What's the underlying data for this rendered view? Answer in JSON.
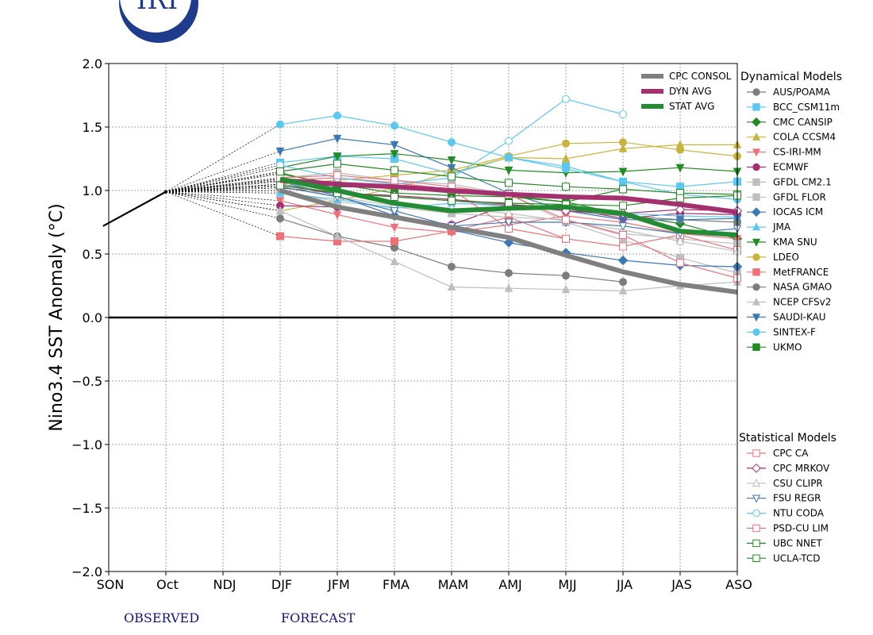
{
  "logo_text": "IRI",
  "footer": {
    "observed": "OBSERVED",
    "forecast": "FORECAST"
  },
  "chart_data": {
    "type": "line",
    "title": "",
    "ylabel": "Nino3.4 SST Anomaly (°C)",
    "xlabel": "",
    "categories": [
      "SON",
      "Oct",
      "NDJ",
      "DJF",
      "JFM",
      "FMA",
      "MAM",
      "AMJ",
      "MJJ",
      "JJA",
      "JAS",
      "ASO"
    ],
    "ylim": [
      -2.0,
      2.0
    ],
    "yticks": [
      2.0,
      1.5,
      1.0,
      0.5,
      0.0,
      -0.5,
      -1.0,
      -1.5,
      -2.0
    ],
    "ytick_labels": [
      "2.0",
      "1.5",
      "1.0",
      "0.5",
      "0.0",
      "−0.5",
      "−1.0",
      "−1.5",
      "−2.0"
    ],
    "grid": true,
    "observed": {
      "x": [
        -0.1,
        1
      ],
      "values": [
        0.72,
        0.99
      ]
    },
    "avg_legend": [
      {
        "name": "CPC CONSOL",
        "color": "#808080"
      },
      {
        "name": "DYN AVG",
        "color": "#a5306f"
      },
      {
        "name": "STAT AVG",
        "color": "#238b34"
      }
    ],
    "averages": [
      {
        "name": "CPC CONSOL",
        "color": "#808080",
        "values": [
          null,
          null,
          null,
          1.0,
          0.87,
          0.79,
          0.71,
          0.63,
          0.49,
          0.36,
          0.26,
          0.2
        ]
      },
      {
        "name": "DYN AVG",
        "color": "#a5306f",
        "values": [
          null,
          null,
          null,
          1.08,
          1.05,
          1.03,
          1.0,
          0.97,
          0.95,
          0.94,
          0.89,
          0.83
        ]
      },
      {
        "name": "STAT AVG",
        "color": "#238b34",
        "values": [
          null,
          null,
          null,
          1.09,
          1.0,
          0.9,
          0.84,
          0.86,
          0.87,
          0.82,
          0.68,
          0.65
        ]
      }
    ],
    "dynamical_title": "Dynamical Models",
    "statistical_title": "Statistical Models",
    "dynamical_models": [
      {
        "name": "AUS/POAMA",
        "color": "#7d7d7d",
        "marker": "circle",
        "filled": true,
        "values": [
          null,
          null,
          null,
          0.78,
          0.64,
          0.55,
          0.4,
          0.35,
          0.33,
          0.28,
          null,
          null
        ]
      },
      {
        "name": "BCC_CSM11m",
        "color": "#5ac8f0",
        "marker": "square",
        "filled": true,
        "values": [
          null,
          null,
          null,
          1.22,
          1.27,
          1.25,
          1.13,
          1.26,
          1.19,
          1.07,
          1.03,
          1.07
        ]
      },
      {
        "name": "CMC CANSIP",
        "color": "#228b22",
        "marker": "diamond",
        "filled": true,
        "values": [
          null,
          null,
          null,
          1.14,
          1.03,
          1.02,
          0.98,
          0.96,
          0.91,
          0.81,
          0.74,
          0.62
        ]
      },
      {
        "name": "COLA CCSM4",
        "color": "#c8b43c",
        "marker": "triangle-up",
        "filled": true,
        "values": [
          null,
          null,
          null,
          0.84,
          0.92,
          1.02,
          1.14,
          1.26,
          1.25,
          1.33,
          1.36,
          1.36
        ]
      },
      {
        "name": "CS-IRI-MM",
        "color": "#f0707a",
        "marker": "triangle-down",
        "filled": true,
        "values": [
          null,
          null,
          null,
          0.92,
          0.81,
          0.71,
          0.67,
          0.73,
          0.8,
          0.75,
          0.66,
          0.62
        ]
      },
      {
        "name": "ECMWF",
        "color": "#a5306f",
        "marker": "circle",
        "filled": true,
        "values": [
          null,
          null,
          null,
          0.88,
          0.87,
          0.8,
          0.73,
          0.89,
          0.86,
          0.78,
          0.82,
          0.81
        ]
      },
      {
        "name": "GFDL CM2.1",
        "color": "#bebebe",
        "marker": "square",
        "filled": true,
        "values": [
          null,
          null,
          null,
          1.1,
          1.14,
          1.08,
          1.05,
          0.97,
          0.75,
          0.61,
          0.47,
          0.35
        ]
      },
      {
        "name": "GFDL FLOR",
        "color": "#bebebe",
        "marker": "square",
        "filled": true,
        "values": [
          null,
          null,
          null,
          1.0,
          0.91,
          0.87,
          0.82,
          0.79,
          0.77,
          0.66,
          0.62,
          0.58
        ]
      },
      {
        "name": "IOCAS ICM",
        "color": "#3c78b4",
        "marker": "diamond",
        "filled": true,
        "values": [
          null,
          null,
          null,
          1.07,
          0.96,
          0.8,
          0.69,
          0.59,
          0.51,
          0.45,
          0.41,
          0.4
        ]
      },
      {
        "name": "JMA",
        "color": "#5ac8f0",
        "marker": "triangle-up",
        "filled": true,
        "values": [
          null,
          null,
          null,
          0.98,
          0.93,
          0.86,
          0.9,
          0.88,
          0.86,
          0.82,
          0.8,
          0.79
        ]
      },
      {
        "name": "KMA SNU",
        "color": "#228b22",
        "marker": "triangle-down",
        "filled": true,
        "values": [
          null,
          null,
          null,
          1.18,
          1.27,
          1.29,
          1.24,
          1.16,
          1.14,
          1.15,
          1.18,
          1.15
        ]
      },
      {
        "name": "LDEO",
        "color": "#c8b43c",
        "marker": "circle",
        "filled": true,
        "values": [
          null,
          null,
          null,
          1.05,
          1.08,
          1.12,
          1.16,
          1.27,
          1.37,
          1.38,
          1.32,
          1.27
        ]
      },
      {
        "name": "MetFRANCE",
        "color": "#f0707a",
        "marker": "square",
        "filled": true,
        "values": [
          null,
          null,
          null,
          0.64,
          0.6,
          0.6,
          0.68,
          0.79,
          0.62,
          null,
          null,
          null
        ]
      },
      {
        "name": "NASA GMAO",
        "color": "#7d7d7d",
        "marker": "circle",
        "filled": true,
        "values": [
          null,
          null,
          null,
          1.05,
          0.98,
          0.95,
          0.92,
          0.88,
          0.84,
          0.8,
          0.77,
          0.75
        ]
      },
      {
        "name": "NCEP CFSv2",
        "color": "#bebebe",
        "marker": "triangle-up",
        "filled": true,
        "values": [
          null,
          null,
          null,
          0.84,
          0.64,
          0.44,
          0.24,
          0.23,
          0.22,
          0.21,
          0.25,
          0.28
        ]
      },
      {
        "name": "SAUDI-KAU",
        "color": "#3c78b4",
        "marker": "triangle-down",
        "filled": true,
        "values": [
          null,
          null,
          null,
          1.31,
          1.41,
          1.36,
          1.18,
          0.98,
          0.84,
          0.77,
          0.77,
          0.78
        ]
      },
      {
        "name": "SINTEX-F",
        "color": "#5ac8f0",
        "marker": "circle",
        "filled": true,
        "values": [
          null,
          null,
          null,
          1.52,
          1.59,
          1.51,
          1.38,
          1.26,
          1.17,
          1.07,
          0.97,
          0.93
        ]
      },
      {
        "name": "UKMO",
        "color": "#228b22",
        "marker": "square",
        "filled": true,
        "values": [
          null,
          null,
          null,
          1.13,
          1.05,
          0.98,
          0.96,
          0.95,
          0.91,
          1.01,
          null,
          null
        ]
      }
    ],
    "statistical_models": [
      {
        "name": "CPC CA",
        "color": "#f0707a",
        "marker": "square",
        "filled": false,
        "values": [
          null,
          null,
          null,
          1.08,
          1.1,
          1.06,
          1.01,
          0.7,
          0.62,
          0.56,
          0.65,
          0.53
        ]
      },
      {
        "name": "CPC MRKOV",
        "color": "#a5306f",
        "marker": "diamond",
        "filled": false,
        "values": [
          null,
          null,
          null,
          1.02,
          0.98,
          0.96,
          0.93,
          0.89,
          0.84,
          0.82,
          0.85,
          0.84
        ]
      },
      {
        "name": "CSU CLIPR",
        "color": "#bebebe",
        "marker": "triangle-up",
        "filled": false,
        "values": [
          null,
          null,
          null,
          1.05,
          0.95,
          0.88,
          0.86,
          0.82,
          0.76,
          0.69,
          0.6,
          0.52
        ]
      },
      {
        "name": "FSU REGR",
        "color": "#3c78b4",
        "marker": "triangle-down",
        "filled": false,
        "values": [
          null,
          null,
          null,
          1.03,
          0.95,
          0.84,
          0.72,
          0.75,
          0.75,
          0.72,
          0.66,
          0.7
        ]
      },
      {
        "name": "NTU CODA",
        "color": "#5ac8f0",
        "marker": "circle",
        "filled": false,
        "values": [
          null,
          null,
          null,
          1.2,
          1.1,
          1.05,
          1.1,
          1.39,
          1.72,
          1.6,
          null,
          null
        ]
      },
      {
        "name": "PSD-CU LIM",
        "color": "#f0707a",
        "marker": "square",
        "filled": false,
        "values": [
          null,
          null,
          null,
          1.1,
          1.12,
          1.08,
          1.03,
          0.97,
          0.77,
          0.65,
          0.43,
          0.31
        ]
      },
      {
        "name": "UBC NNET",
        "color": "#228b22",
        "marker": "square",
        "filled": false,
        "values": [
          null,
          null,
          null,
          1.15,
          1.21,
          1.16,
          1.11,
          1.06,
          1.03,
          1.01,
          0.98,
          0.97
        ]
      },
      {
        "name": "UCLA-TCD",
        "color": "#228b22",
        "marker": "square",
        "filled": false,
        "values": [
          null,
          null,
          null,
          1.04,
          0.98,
          0.95,
          0.92,
          0.9,
          0.89,
          0.88,
          0.94,
          0.96
        ]
      }
    ]
  }
}
